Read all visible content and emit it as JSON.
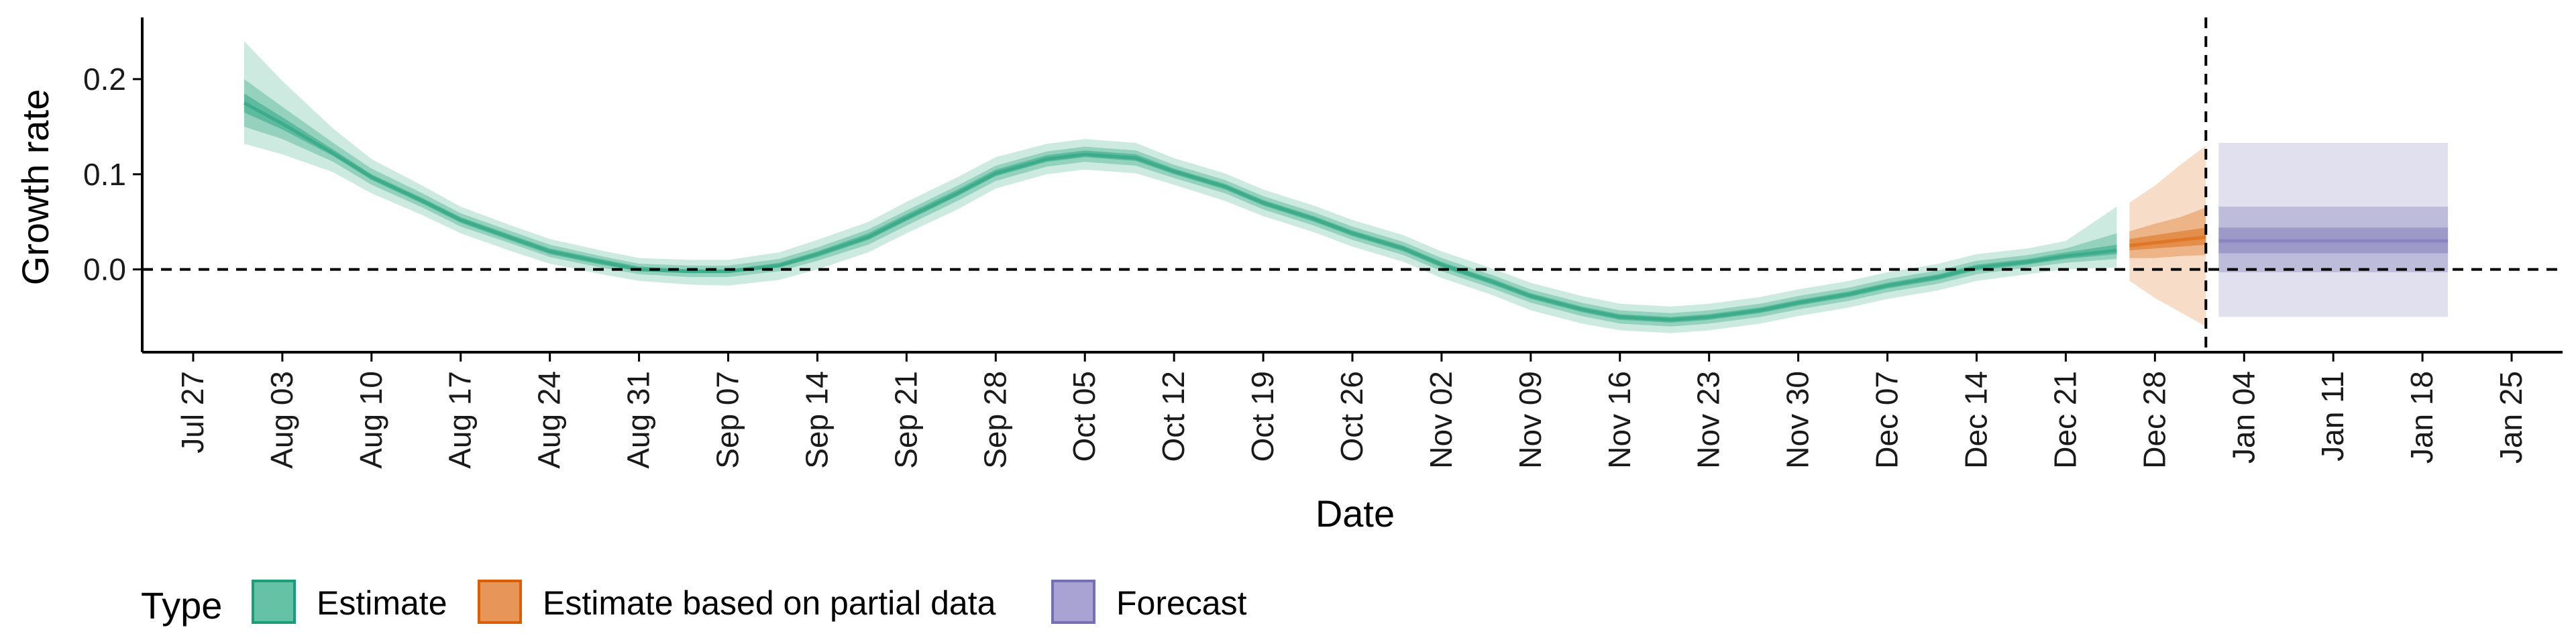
{
  "chart_data": {
    "type": "area",
    "xlabel": "Date",
    "ylabel": "Growth rate",
    "ylim": [
      -0.087,
      0.262
    ],
    "y_ticks": [
      0.0,
      0.1,
      0.2
    ],
    "y_tick_labels": [
      "0.0",
      "0.1",
      "0.2"
    ],
    "x_axis": "date",
    "xlim": [
      "2020-07-23",
      "2021-01-29"
    ],
    "x_ticks": [
      "2020-07-27",
      "2020-08-03",
      "2020-08-10",
      "2020-08-17",
      "2020-08-24",
      "2020-08-31",
      "2020-09-07",
      "2020-09-14",
      "2020-09-21",
      "2020-09-28",
      "2020-10-05",
      "2020-10-12",
      "2020-10-19",
      "2020-10-26",
      "2020-11-02",
      "2020-11-09",
      "2020-11-16",
      "2020-11-23",
      "2020-11-30",
      "2020-12-07",
      "2020-12-14",
      "2020-12-21",
      "2020-12-28",
      "2021-01-04",
      "2021-01-11",
      "2021-01-18",
      "2021-01-25"
    ],
    "x_tick_labels": [
      "Jul 27",
      "Aug 03",
      "Aug 10",
      "Aug 17",
      "Aug 24",
      "Aug 31",
      "Sep 07",
      "Sep 14",
      "Sep 21",
      "Sep 28",
      "Oct 05",
      "Oct 12",
      "Oct 19",
      "Oct 26",
      "Nov 02",
      "Nov 09",
      "Nov 16",
      "Nov 23",
      "Nov 30",
      "Dec 07",
      "Dec 14",
      "Dec 21",
      "Dec 28",
      "Jan 04",
      "Jan 11",
      "Jan 18",
      "Jan 25"
    ],
    "reference_lines": {
      "horizontal_y": 0.0,
      "vertical_x": "2021-01-01"
    },
    "legend": {
      "title": "Type",
      "position": "bottom-left",
      "entries": [
        {
          "label": "Estimate",
          "fill": "#66c2a5",
          "border": "#1b9e77"
        },
        {
          "label": "Estimate based on partial data",
          "fill": "#e8955a",
          "border": "#d95f02"
        },
        {
          "label": "Forecast",
          "fill": "#a9a3d4",
          "border": "#7570b3"
        }
      ]
    },
    "series": [
      {
        "name": "Estimate",
        "colors": {
          "band": "#1b9e77",
          "line": "#1b9e77"
        },
        "x": [
          "2020-07-31",
          "2020-08-03",
          "2020-08-07",
          "2020-08-10",
          "2020-08-14",
          "2020-08-17",
          "2020-08-21",
          "2020-08-24",
          "2020-08-28",
          "2020-08-31",
          "2020-09-04",
          "2020-09-07",
          "2020-09-11",
          "2020-09-14",
          "2020-09-18",
          "2020-09-21",
          "2020-09-25",
          "2020-09-28",
          "2020-10-02",
          "2020-10-05",
          "2020-10-09",
          "2020-10-12",
          "2020-10-16",
          "2020-10-19",
          "2020-10-23",
          "2020-10-26",
          "2020-10-30",
          "2020-11-02",
          "2020-11-06",
          "2020-11-09",
          "2020-11-13",
          "2020-11-16",
          "2020-11-20",
          "2020-11-23",
          "2020-11-27",
          "2020-11-30",
          "2020-12-04",
          "2020-12-07",
          "2020-12-11",
          "2020-12-14",
          "2020-12-18",
          "2020-12-21",
          "2020-12-25"
        ],
        "median": [
          0.175,
          0.153,
          0.122,
          0.097,
          0.072,
          0.052,
          0.033,
          0.019,
          0.008,
          0.0,
          -0.002,
          -0.002,
          0.004,
          0.016,
          0.034,
          0.054,
          0.08,
          0.101,
          0.116,
          0.121,
          0.117,
          0.103,
          0.087,
          0.07,
          0.053,
          0.038,
          0.022,
          0.005,
          -0.013,
          -0.028,
          -0.042,
          -0.05,
          -0.053,
          -0.05,
          -0.043,
          -0.035,
          -0.026,
          -0.017,
          -0.008,
          0.002,
          0.008,
          0.014,
          0.02
        ],
        "lower90": [
          0.132,
          0.121,
          0.102,
          0.08,
          0.057,
          0.038,
          0.019,
          0.006,
          -0.005,
          -0.012,
          -0.016,
          -0.017,
          -0.011,
          0.0,
          0.018,
          0.038,
          0.063,
          0.085,
          0.1,
          0.105,
          0.101,
          0.089,
          0.072,
          0.056,
          0.039,
          0.024,
          0.008,
          -0.009,
          -0.027,
          -0.043,
          -0.057,
          -0.064,
          -0.067,
          -0.064,
          -0.057,
          -0.049,
          -0.04,
          -0.031,
          -0.022,
          -0.012,
          -0.005,
          0.0,
          0.002
        ],
        "upper90": [
          0.24,
          0.198,
          0.148,
          0.116,
          0.088,
          0.066,
          0.046,
          0.032,
          0.02,
          0.012,
          0.01,
          0.01,
          0.018,
          0.031,
          0.05,
          0.071,
          0.097,
          0.118,
          0.132,
          0.137,
          0.133,
          0.117,
          0.101,
          0.084,
          0.067,
          0.052,
          0.036,
          0.019,
          0.001,
          -0.014,
          -0.028,
          -0.036,
          -0.039,
          -0.036,
          -0.029,
          -0.021,
          -0.012,
          -0.003,
          0.006,
          0.016,
          0.022,
          0.03,
          0.066
        ],
        "lower50": [
          0.15,
          0.137,
          0.113,
          0.089,
          0.065,
          0.045,
          0.027,
          0.013,
          0.002,
          -0.005,
          -0.008,
          -0.008,
          -0.002,
          0.009,
          0.026,
          0.046,
          0.072,
          0.093,
          0.108,
          0.113,
          0.109,
          0.096,
          0.08,
          0.063,
          0.046,
          0.031,
          0.015,
          -0.002,
          -0.02,
          -0.035,
          -0.049,
          -0.057,
          -0.06,
          -0.057,
          -0.05,
          -0.042,
          -0.033,
          -0.024,
          -0.015,
          -0.005,
          0.002,
          0.007,
          0.011
        ],
        "upper50": [
          0.2,
          0.171,
          0.133,
          0.106,
          0.08,
          0.059,
          0.04,
          0.026,
          0.014,
          0.006,
          0.004,
          0.004,
          0.011,
          0.023,
          0.042,
          0.062,
          0.088,
          0.109,
          0.124,
          0.129,
          0.125,
          0.11,
          0.094,
          0.077,
          0.06,
          0.045,
          0.029,
          0.012,
          -0.006,
          -0.021,
          -0.035,
          -0.043,
          -0.046,
          -0.043,
          -0.036,
          -0.028,
          -0.019,
          -0.01,
          -0.001,
          0.009,
          0.015,
          0.022,
          0.038
        ],
        "lower20": [
          0.165,
          0.147,
          0.119,
          0.094,
          0.069,
          0.049,
          0.03,
          0.016,
          0.005,
          -0.002,
          -0.004,
          -0.004,
          0.002,
          0.013,
          0.031,
          0.051,
          0.077,
          0.098,
          0.113,
          0.118,
          0.114,
          0.1,
          0.084,
          0.067,
          0.05,
          0.035,
          0.019,
          0.002,
          -0.016,
          -0.031,
          -0.045,
          -0.053,
          -0.056,
          -0.053,
          -0.046,
          -0.038,
          -0.029,
          -0.02,
          -0.011,
          -0.001,
          0.005,
          0.011,
          0.016
        ],
        "upper20": [
          0.185,
          0.16,
          0.126,
          0.1,
          0.075,
          0.055,
          0.036,
          0.022,
          0.011,
          0.003,
          0.0,
          0.0,
          0.007,
          0.019,
          0.038,
          0.058,
          0.084,
          0.105,
          0.12,
          0.125,
          0.121,
          0.106,
          0.09,
          0.073,
          0.056,
          0.041,
          0.025,
          0.008,
          -0.01,
          -0.025,
          -0.039,
          -0.047,
          -0.05,
          -0.047,
          -0.04,
          -0.032,
          -0.023,
          -0.014,
          -0.005,
          0.005,
          0.011,
          0.018,
          0.026
        ]
      },
      {
        "name": "Estimate based on partial data",
        "colors": {
          "band": "#d95f02",
          "line": "#d95f02"
        },
        "x": [
          "2020-12-26",
          "2020-12-28",
          "2020-12-30",
          "2021-01-01"
        ],
        "median": [
          0.025,
          0.028,
          0.031,
          0.034
        ],
        "lower90": [
          -0.012,
          -0.03,
          -0.045,
          -0.06
        ],
        "upper90": [
          0.07,
          0.088,
          0.11,
          0.13
        ],
        "lower50": [
          0.012,
          0.012,
          0.014,
          0.015
        ],
        "upper50": [
          0.04,
          0.048,
          0.055,
          0.065
        ],
        "lower20": [
          0.02,
          0.022,
          0.024,
          0.026
        ],
        "upper20": [
          0.032,
          0.036,
          0.04,
          0.044
        ]
      },
      {
        "name": "Forecast",
        "colors": {
          "band": "#7570b3",
          "line": "#7570b3"
        },
        "x": [
          "2021-01-02",
          "2021-01-20"
        ],
        "median": [
          0.03,
          0.03
        ],
        "lower90": [
          -0.05,
          -0.05
        ],
        "upper90": [
          0.133,
          0.133
        ],
        "lower50": [
          -0.003,
          -0.003
        ],
        "upper50": [
          0.066,
          0.066
        ],
        "lower20": [
          0.017,
          0.017
        ],
        "upper20": [
          0.044,
          0.044
        ]
      }
    ]
  }
}
